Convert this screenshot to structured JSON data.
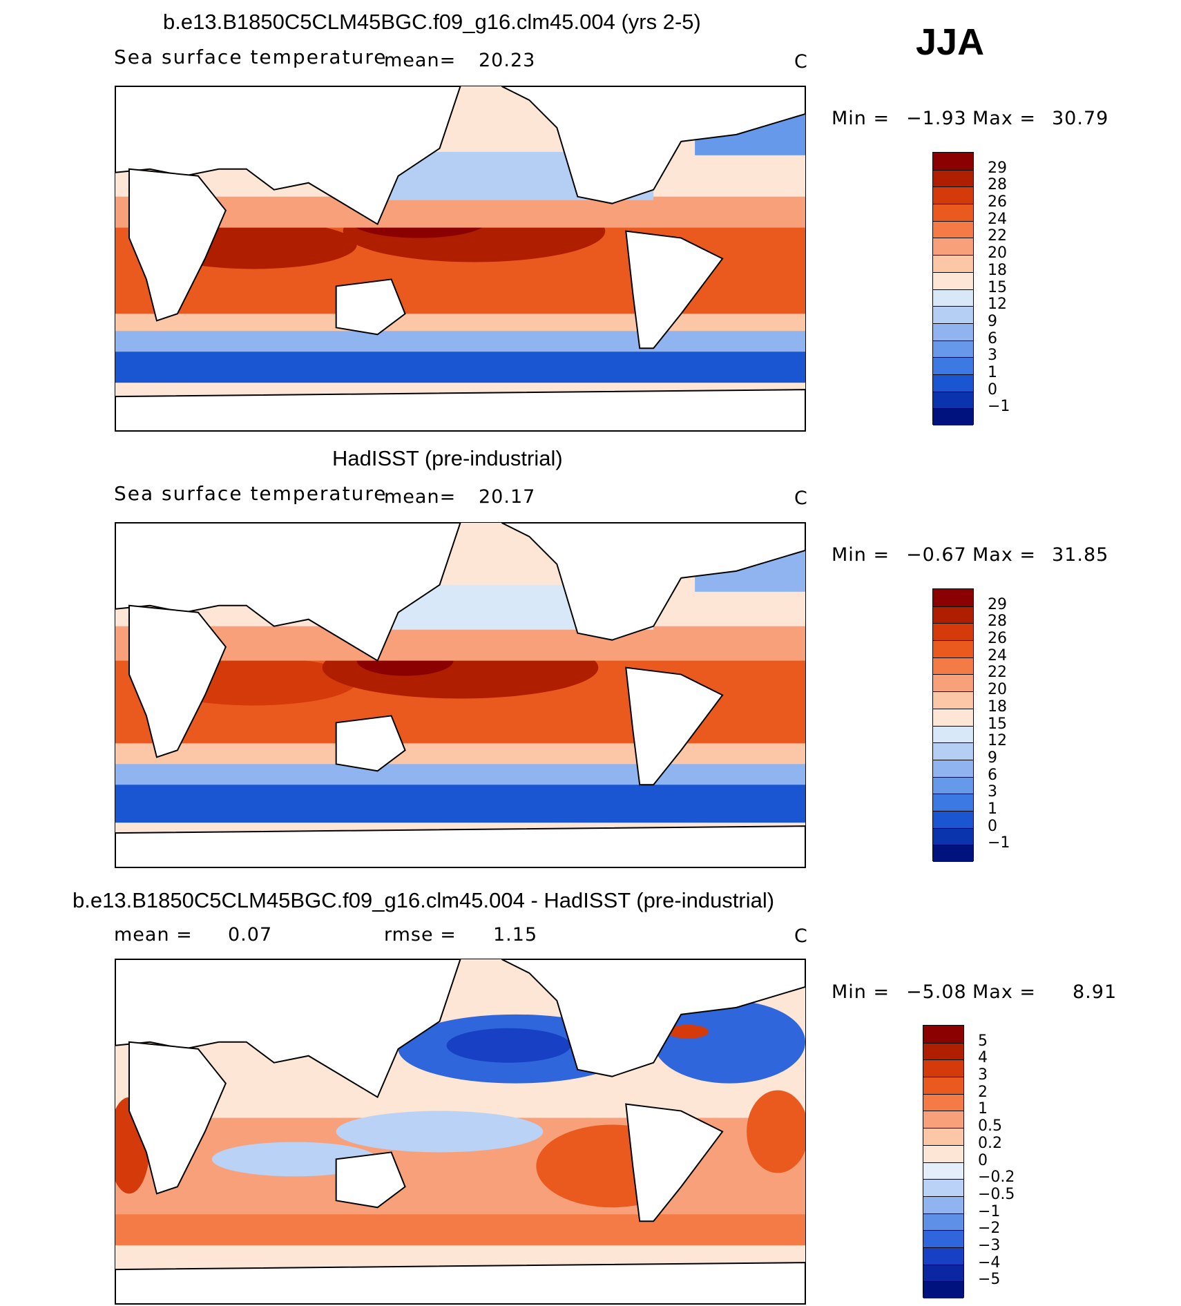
{
  "season": "JJA",
  "units": "C",
  "panels": [
    {
      "title": "b.e13.B1850C5CLM45BGC.f09_g16.clm45.004 (yrs 2-5)",
      "variable": "Sea surface temperature",
      "mean_label": "mean=",
      "mean_value": "20.23",
      "min_label": "Min =",
      "min_value": "−1.93",
      "max_label": "Max =",
      "max_value": "30.79"
    },
    {
      "title": "HadISST (pre-industrial)",
      "variable": "Sea surface temperature",
      "mean_label": "mean=",
      "mean_value": "20.17",
      "min_label": "Min =",
      "min_value": "−0.67",
      "max_label": "Max =",
      "max_value": "31.85"
    },
    {
      "title": "b.e13.B1850C5CLM45BGC.f09_g16.clm45.004 - HadISST (pre-industrial)",
      "mean_label": "mean =",
      "mean_value": "0.07",
      "rmse_label": "rmse =",
      "rmse_value": "1.15",
      "min_label": "Min =",
      "min_value": "−5.08",
      "max_label": "Max =",
      "max_value": "8.91"
    }
  ],
  "chart_data": [
    {
      "type": "heatmap",
      "title": "b.e13.B1850C5CLM45BGC.f09_g16.clm45.004 (yrs 2-5)",
      "variable": "Sea surface temperature",
      "units": "C",
      "mean": 20.23,
      "min": -1.93,
      "max": 30.79,
      "colorbar_levels": [
        "29",
        "28",
        "26",
        "24",
        "22",
        "20",
        "18",
        "15",
        "12",
        "9",
        "6",
        "3",
        "1",
        "0",
        "−1"
      ],
      "colorbar_colors": [
        "#8b0000",
        "#b01e00",
        "#d43a0a",
        "#ea5a1e",
        "#f47a46",
        "#f8a079",
        "#fbc7a7",
        "#fde6d6",
        "#d9e8f8",
        "#b5cff4",
        "#8fb4ef",
        "#6699ea",
        "#3d79e2",
        "#1a55d2",
        "#0a34ae",
        "#00127d"
      ]
    },
    {
      "type": "heatmap",
      "title": "HadISST (pre-industrial)",
      "variable": "Sea surface temperature",
      "units": "C",
      "mean": 20.17,
      "min": -0.67,
      "max": 31.85,
      "colorbar_levels": [
        "29",
        "28",
        "26",
        "24",
        "22",
        "20",
        "18",
        "15",
        "12",
        "9",
        "6",
        "3",
        "1",
        "0",
        "−1"
      ],
      "colorbar_colors": [
        "#8b0000",
        "#b01e00",
        "#d43a0a",
        "#ea5a1e",
        "#f47a46",
        "#f8a079",
        "#fbc7a7",
        "#fde6d6",
        "#d9e8f8",
        "#b5cff4",
        "#8fb4ef",
        "#6699ea",
        "#3d79e2",
        "#1a55d2",
        "#0a34ae",
        "#00127d"
      ]
    },
    {
      "type": "heatmap",
      "title": "b.e13.B1850C5CLM45BGC.f09_g16.clm45.004 - HadISST (pre-industrial)",
      "units": "C",
      "mean": 0.07,
      "rmse": 1.15,
      "min": -5.08,
      "max": 8.91,
      "colorbar_levels": [
        "5",
        "4",
        "3",
        "2",
        "1",
        "0.5",
        "0.2",
        "0",
        "−0.2",
        "−0.5",
        "−1",
        "−2",
        "−3",
        "−4",
        "−5"
      ],
      "colorbar_colors": [
        "#8b0000",
        "#b01e00",
        "#d43a0a",
        "#ea5a1e",
        "#f47a46",
        "#f8a079",
        "#fbc7a7",
        "#fde6d6",
        "#e4eefb",
        "#b9d2f5",
        "#8fb4ef",
        "#5f90e8",
        "#2f66dc",
        "#1840c4",
        "#0a26a0",
        "#00127d"
      ]
    }
  ]
}
